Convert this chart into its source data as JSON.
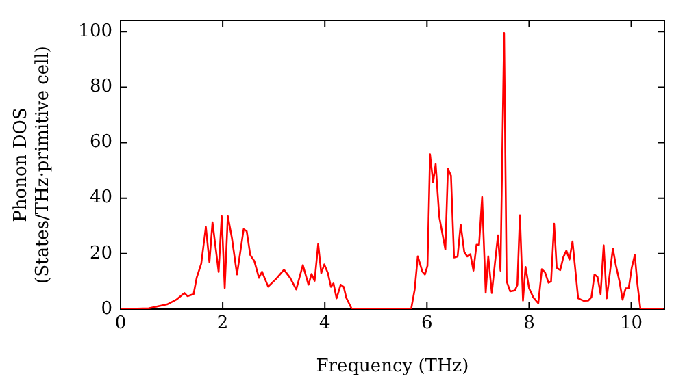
{
  "chart_data": {
    "type": "line",
    "xlabel": "Frequency (THz)",
    "ylabel": "Phonon DOS\n(States/THz·primitive cell)",
    "xlim": [
      0,
      10.65
    ],
    "ylim": [
      0,
      104
    ],
    "xticks": [
      0,
      2,
      4,
      6,
      8,
      10
    ],
    "yticks": [
      0,
      20,
      40,
      60,
      80,
      100
    ],
    "grid": false,
    "legend": false,
    "marker": "none",
    "line_style": "solid",
    "series": [
      {
        "color": "#ff0000",
        "x": [
          0,
          0.55,
          0.91,
          1.09,
          1.25,
          1.31,
          1.43,
          1.49,
          1.58,
          1.67,
          1.74,
          1.8,
          1.92,
          1.98,
          2.04,
          2.1,
          2.18,
          2.28,
          2.41,
          2.47,
          2.54,
          2.62,
          2.71,
          2.77,
          2.89,
          3.05,
          3.2,
          3.32,
          3.44,
          3.57,
          3.68,
          3.74,
          3.8,
          3.87,
          3.93,
          3.99,
          4.06,
          4.12,
          4.17,
          4.23,
          4.31,
          4.37,
          4.42,
          4.53,
          5.69,
          5.76,
          5.82,
          5.91,
          5.96,
          6.01,
          6.06,
          6.12,
          6.17,
          6.24,
          6.36,
          6.41,
          6.47,
          6.53,
          6.6,
          6.66,
          6.73,
          6.79,
          6.85,
          6.91,
          6.97,
          7.02,
          7.08,
          7.15,
          7.2,
          7.27,
          7.33,
          7.39,
          7.44,
          7.51,
          7.56,
          7.63,
          7.72,
          7.77,
          7.82,
          7.88,
          7.93,
          8,
          8.08,
          8.18,
          8.25,
          8.31,
          8.38,
          8.43,
          8.49,
          8.54,
          8.61,
          8.67,
          8.73,
          8.79,
          8.85,
          8.96,
          9.07,
          9.16,
          9.22,
          9.28,
          9.34,
          9.4,
          9.46,
          9.52,
          9.64,
          9.7,
          9.77,
          9.83,
          9.89,
          9.95,
          10.01,
          10.07,
          10.12,
          10.18,
          10.63
        ],
        "values": [
          0,
          0.3,
          1.7,
          3.4,
          5.8,
          4.7,
          5.4,
          11.3,
          16.4,
          29.6,
          16.9,
          31.3,
          13.4,
          33.5,
          7.6,
          33.5,
          25.7,
          12.5,
          28.8,
          28.1,
          19.5,
          17.3,
          11.3,
          13.5,
          8.1,
          11,
          14.2,
          11.3,
          7.1,
          15.9,
          8.8,
          12.7,
          10.2,
          23.5,
          13,
          16.1,
          13,
          8,
          9.3,
          3.9,
          8.8,
          8,
          4.1,
          0,
          0,
          7.1,
          19,
          13.5,
          12.5,
          15.6,
          55.8,
          45.7,
          52.3,
          33.3,
          21.5,
          50.6,
          48.1,
          18.6,
          19,
          30.5,
          20.6,
          19,
          19.8,
          13.9,
          23.2,
          23.2,
          40.4,
          5.9,
          19,
          5.8,
          16.4,
          26.6,
          13.9,
          99.5,
          10,
          6.4,
          6.7,
          8.7,
          33.8,
          3.1,
          15.2,
          7.5,
          4.3,
          2.1,
          14.4,
          13.3,
          9.5,
          10,
          30.8,
          14.9,
          14.1,
          18.7,
          21.1,
          17.9,
          24.4,
          3.9,
          3,
          3.1,
          4.3,
          12.5,
          11.6,
          5.4,
          23,
          3.9,
          21.8,
          15.7,
          10,
          3.4,
          7.5,
          7.5,
          14.9,
          19.5,
          9.2,
          0,
          0
        ]
      }
    ]
  }
}
